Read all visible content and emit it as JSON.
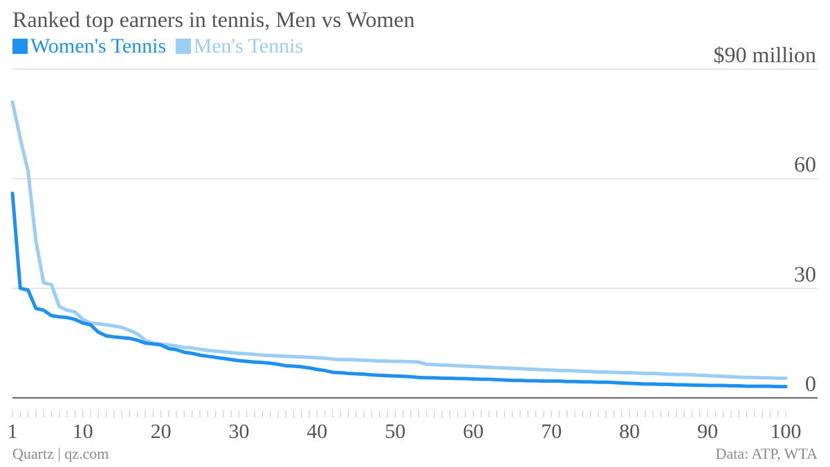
{
  "title": "Ranked top earners in tennis, Men vs Women",
  "legend": [
    {
      "label": "Women's Tennis",
      "color": "#1e90f0"
    },
    {
      "label": "Men's Tennis",
      "color": "#9ccdf5"
    }
  ],
  "footer": {
    "source_left": "Quartz | qz.com",
    "source_right": "Data: ATP, WTA"
  },
  "chart_data": {
    "type": "line",
    "title": "Ranked top earners in tennis, Men vs Women",
    "xlabel": "",
    "ylabel": "",
    "xlim": [
      1,
      100
    ],
    "ylim": [
      0,
      90
    ],
    "x_ticks": [
      1,
      10,
      20,
      30,
      40,
      50,
      60,
      70,
      80,
      90,
      100
    ],
    "y_ticks": [
      0,
      30,
      60,
      90
    ],
    "y_tick_labels": [
      "0",
      "30",
      "60",
      "$90 million"
    ],
    "grid": true,
    "legend_position": "top-left",
    "series": [
      {
        "name": "Women's Tennis",
        "color": "#1e90f0",
        "points": [
          [
            1,
            56
          ],
          [
            2,
            30
          ],
          [
            3,
            29.5
          ],
          [
            4,
            24.5
          ],
          [
            5,
            24
          ],
          [
            6,
            22.5
          ],
          [
            7,
            22.2
          ],
          [
            8,
            22
          ],
          [
            9,
            21.5
          ],
          [
            10,
            20.5
          ],
          [
            11,
            20
          ],
          [
            12,
            18
          ],
          [
            13,
            17
          ],
          [
            14,
            16.7
          ],
          [
            15,
            16.5
          ],
          [
            16,
            16.3
          ],
          [
            17,
            15.8
          ],
          [
            18,
            15
          ],
          [
            19,
            14.8
          ],
          [
            20,
            14.5
          ],
          [
            21,
            13.5
          ],
          [
            22,
            13.2
          ],
          [
            23,
            12.5
          ],
          [
            24,
            12.2
          ],
          [
            25,
            11.7
          ],
          [
            26,
            11.4
          ],
          [
            27,
            11.1
          ],
          [
            28,
            10.8
          ],
          [
            29,
            10.5
          ],
          [
            30,
            10.2
          ],
          [
            31,
            10
          ],
          [
            32,
            9.8
          ],
          [
            33,
            9.7
          ],
          [
            34,
            9.5
          ],
          [
            35,
            9.2
          ],
          [
            36,
            8.8
          ],
          [
            37,
            8.7
          ],
          [
            38,
            8.5
          ],
          [
            39,
            8.2
          ],
          [
            40,
            7.8
          ],
          [
            41,
            7.5
          ],
          [
            42,
            7
          ],
          [
            43,
            6.9
          ],
          [
            44,
            6.7
          ],
          [
            45,
            6.6
          ],
          [
            46,
            6.5
          ],
          [
            47,
            6.3
          ],
          [
            48,
            6.2
          ],
          [
            49,
            6.1
          ],
          [
            50,
            6
          ],
          [
            51,
            5.9
          ],
          [
            52,
            5.8
          ],
          [
            53,
            5.6
          ],
          [
            54,
            5.5
          ],
          [
            55,
            5.5
          ],
          [
            56,
            5.4
          ],
          [
            57,
            5.4
          ],
          [
            58,
            5.3
          ],
          [
            59,
            5.3
          ],
          [
            60,
            5.2
          ],
          [
            61,
            5.1
          ],
          [
            62,
            5.1
          ],
          [
            63,
            5
          ],
          [
            64,
            4.9
          ],
          [
            65,
            4.8
          ],
          [
            66,
            4.8
          ],
          [
            67,
            4.7
          ],
          [
            68,
            4.7
          ],
          [
            69,
            4.6
          ],
          [
            70,
            4.6
          ],
          [
            71,
            4.6
          ],
          [
            72,
            4.5
          ],
          [
            73,
            4.5
          ],
          [
            74,
            4.4
          ],
          [
            75,
            4.4
          ],
          [
            76,
            4.3
          ],
          [
            77,
            4.3
          ],
          [
            78,
            4.2
          ],
          [
            79,
            4.1
          ],
          [
            80,
            4
          ],
          [
            81,
            3.9
          ],
          [
            82,
            3.8
          ],
          [
            83,
            3.8
          ],
          [
            84,
            3.7
          ],
          [
            85,
            3.7
          ],
          [
            86,
            3.6
          ],
          [
            87,
            3.6
          ],
          [
            88,
            3.5
          ],
          [
            89,
            3.5
          ],
          [
            90,
            3.4
          ],
          [
            91,
            3.4
          ],
          [
            92,
            3.4
          ],
          [
            93,
            3.3
          ],
          [
            94,
            3.3
          ],
          [
            95,
            3.2
          ],
          [
            96,
            3.2
          ],
          [
            97,
            3.2
          ],
          [
            98,
            3.2
          ],
          [
            99,
            3.1
          ],
          [
            100,
            3.1
          ]
        ]
      },
      {
        "name": "Men's Tennis",
        "color": "#9ccdf5",
        "points": [
          [
            1,
            81
          ],
          [
            2,
            71
          ],
          [
            3,
            62
          ],
          [
            4,
            43
          ],
          [
            5,
            31.5
          ],
          [
            6,
            31
          ],
          [
            7,
            25
          ],
          [
            8,
            24
          ],
          [
            9,
            23.5
          ],
          [
            10,
            21.5
          ],
          [
            11,
            20.5
          ],
          [
            12,
            20.3
          ],
          [
            13,
            20
          ],
          [
            14,
            19.7
          ],
          [
            15,
            19.3
          ],
          [
            16,
            18.5
          ],
          [
            17,
            17.5
          ],
          [
            18,
            15.8
          ],
          [
            19,
            15
          ],
          [
            20,
            14.7
          ],
          [
            21,
            14.5
          ],
          [
            22,
            14.2
          ],
          [
            23,
            13.8
          ],
          [
            24,
            13.7
          ],
          [
            25,
            13.3
          ],
          [
            26,
            13
          ],
          [
            27,
            12.8
          ],
          [
            28,
            12.6
          ],
          [
            29,
            12.4
          ],
          [
            30,
            12.2
          ],
          [
            31,
            12.1
          ],
          [
            32,
            11.9
          ],
          [
            33,
            11.7
          ],
          [
            34,
            11.6
          ],
          [
            35,
            11.5
          ],
          [
            36,
            11.4
          ],
          [
            37,
            11.3
          ],
          [
            38,
            11.2
          ],
          [
            39,
            11.1
          ],
          [
            40,
            11
          ],
          [
            41,
            10.9
          ],
          [
            42,
            10.6
          ],
          [
            43,
            10.5
          ],
          [
            44,
            10.5
          ],
          [
            45,
            10.4
          ],
          [
            46,
            10.3
          ],
          [
            47,
            10.2
          ],
          [
            48,
            10.1
          ],
          [
            49,
            10.1
          ],
          [
            50,
            10
          ],
          [
            51,
            10
          ],
          [
            52,
            9.9
          ],
          [
            53,
            9.8
          ],
          [
            54,
            9.2
          ],
          [
            55,
            9.1
          ],
          [
            56,
            9
          ],
          [
            57,
            8.9
          ],
          [
            58,
            8.8
          ],
          [
            59,
            8.7
          ],
          [
            60,
            8.6
          ],
          [
            61,
            8.5
          ],
          [
            62,
            8.4
          ],
          [
            63,
            8.3
          ],
          [
            64,
            8.2
          ],
          [
            65,
            8.1
          ],
          [
            66,
            8
          ],
          [
            67,
            7.9
          ],
          [
            68,
            7.8
          ],
          [
            69,
            7.7
          ],
          [
            70,
            7.6
          ],
          [
            71,
            7.5
          ],
          [
            72,
            7.5
          ],
          [
            73,
            7.4
          ],
          [
            74,
            7.3
          ],
          [
            75,
            7.2
          ],
          [
            76,
            7.1
          ],
          [
            77,
            7.1
          ],
          [
            78,
            7
          ],
          [
            79,
            6.9
          ],
          [
            80,
            6.9
          ],
          [
            81,
            6.8
          ],
          [
            82,
            6.7
          ],
          [
            83,
            6.7
          ],
          [
            84,
            6.6
          ],
          [
            85,
            6.5
          ],
          [
            86,
            6.4
          ],
          [
            87,
            6.4
          ],
          [
            88,
            6.3
          ],
          [
            89,
            6.2
          ],
          [
            90,
            6.1
          ],
          [
            91,
            6
          ],
          [
            92,
            5.9
          ],
          [
            93,
            5.8
          ],
          [
            94,
            5.7
          ],
          [
            95,
            5.6
          ],
          [
            96,
            5.6
          ],
          [
            97,
            5.5
          ],
          [
            98,
            5.5
          ],
          [
            99,
            5.4
          ],
          [
            100,
            5.4
          ]
        ]
      }
    ]
  }
}
